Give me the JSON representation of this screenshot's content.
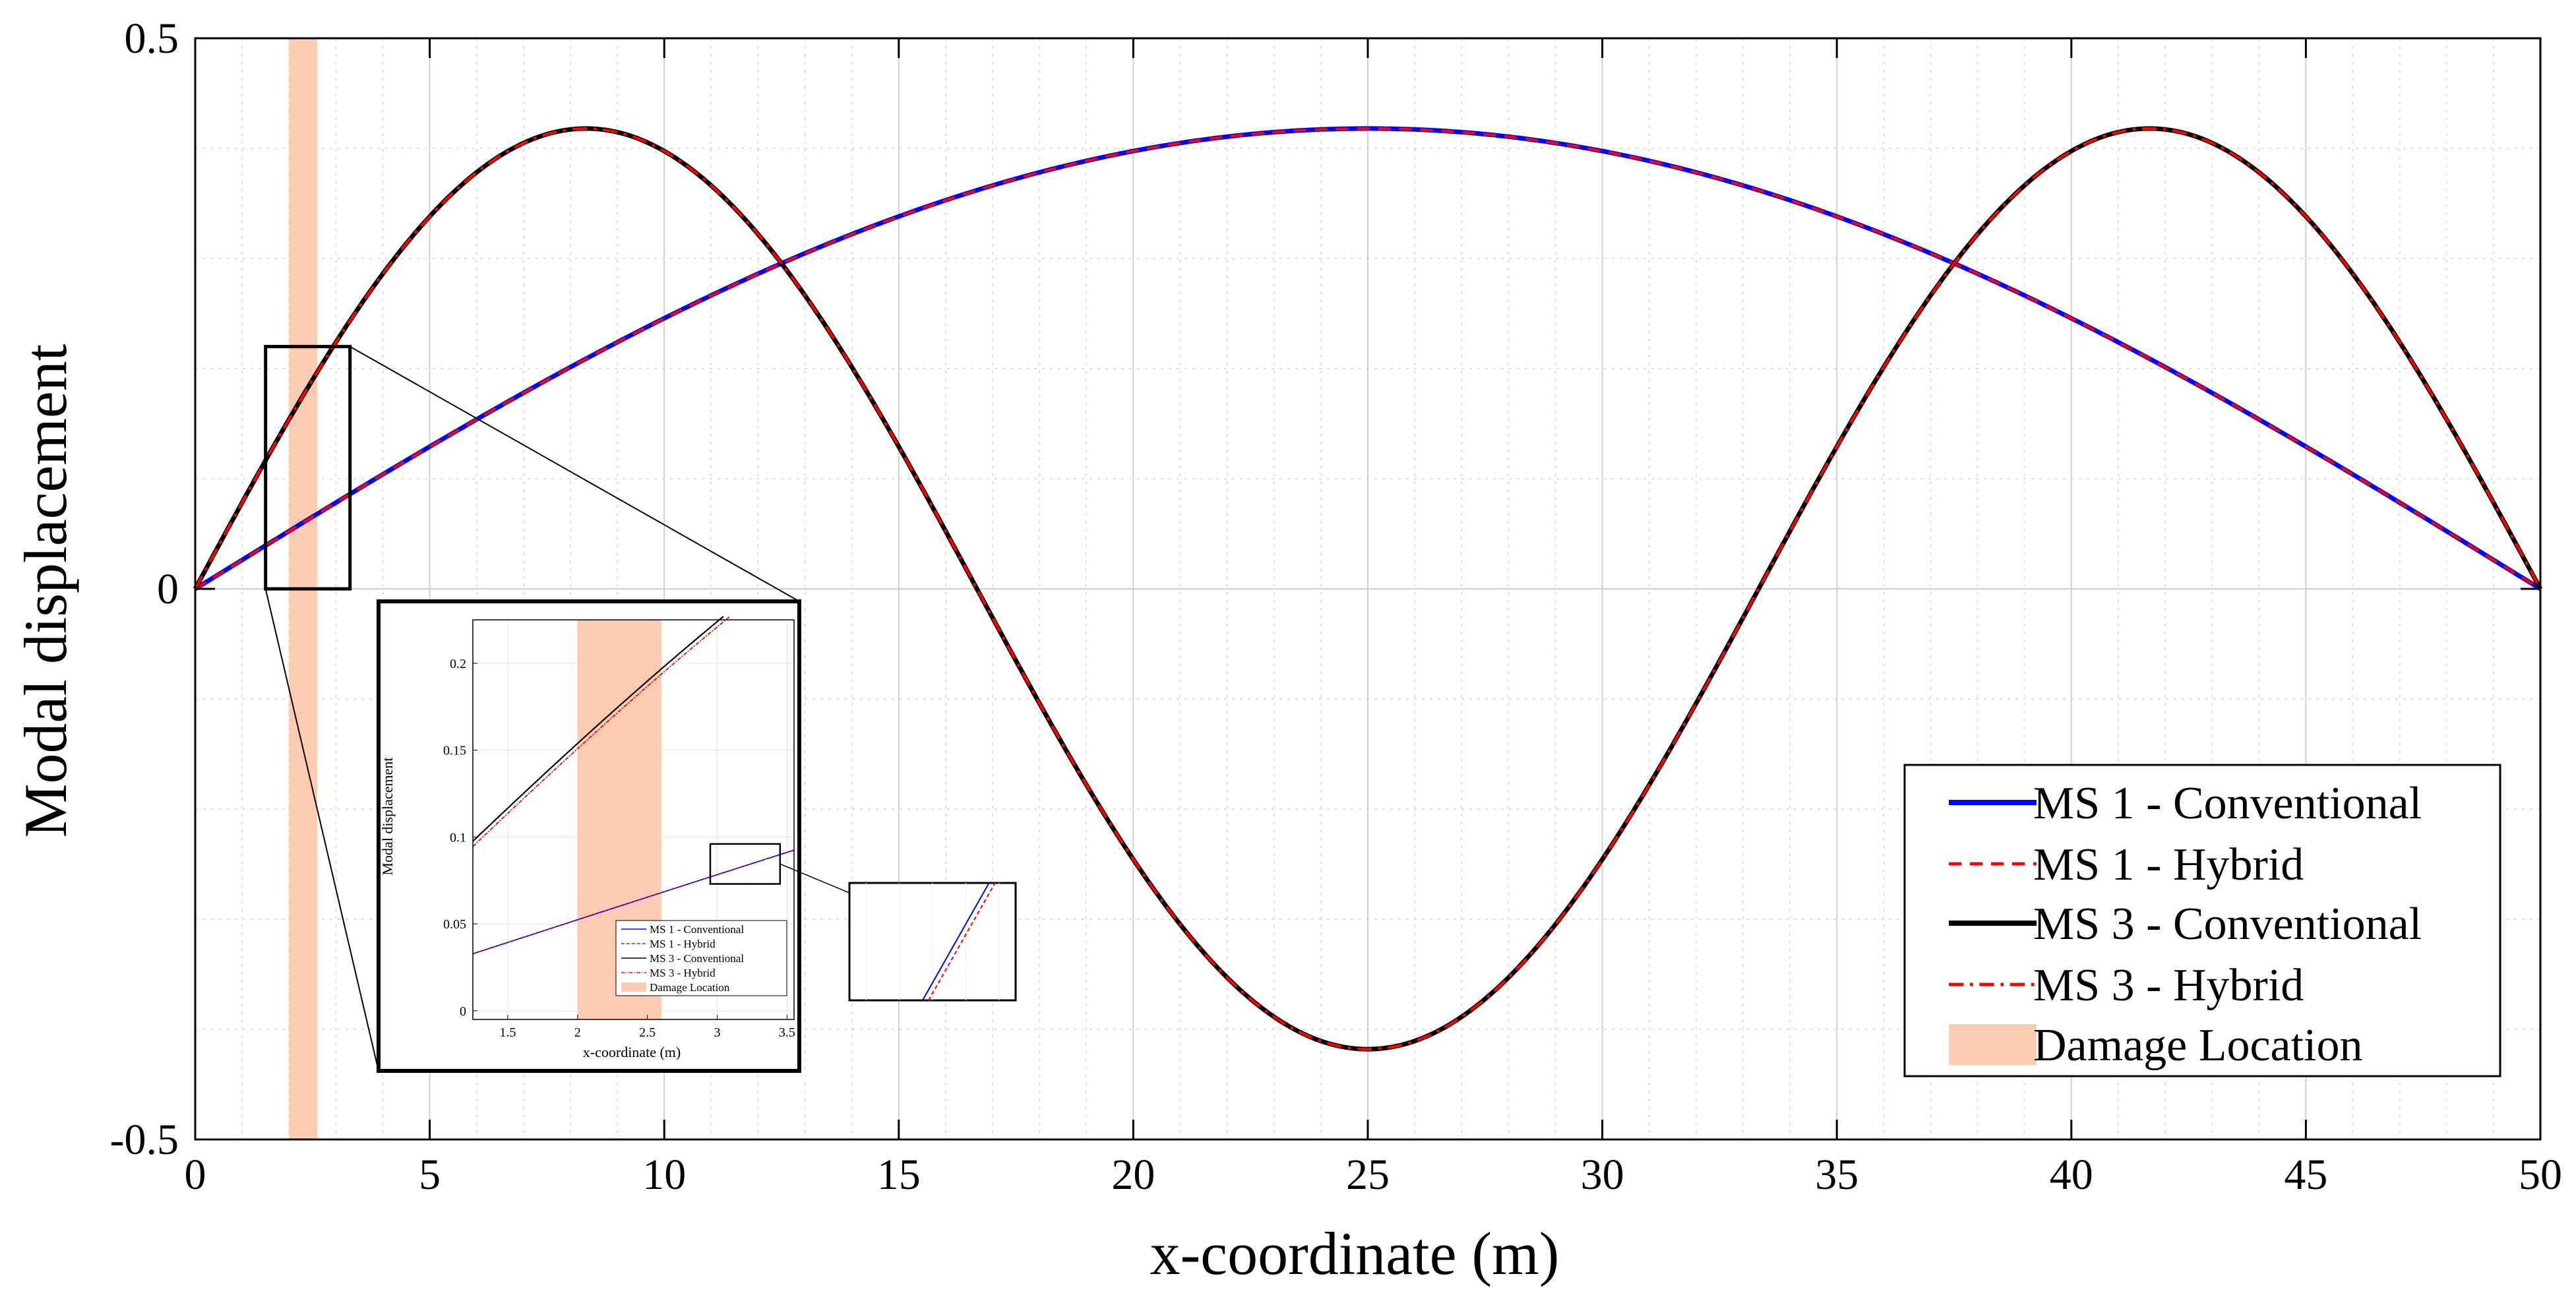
{
  "chart_data": [
    {
      "type": "line",
      "title": "",
      "xlabel": "x-coordinate (m)",
      "ylabel": "Modal displacement",
      "xlim": [
        0,
        50
      ],
      "ylim": [
        -0.5,
        0.5
      ],
      "xticks": [
        0,
        5,
        10,
        15,
        20,
        25,
        30,
        35,
        40,
        45,
        50
      ],
      "xtick_labels": [
        "0",
        "5",
        "10",
        "15",
        "20",
        "25",
        "30",
        "35",
        "40",
        "45",
        "50"
      ],
      "yticks": [
        -0.5,
        0,
        0.5
      ],
      "ytick_labels": [
        "-0.5",
        "0",
        "0.5"
      ],
      "grid": true,
      "legend_position": "bottom-right",
      "damage_location": {
        "x_range": [
          2.0,
          2.6
        ],
        "color": "#fdcbb1",
        "label": "Damage Location"
      },
      "zoom_box": {
        "x_range": [
          1.5,
          3.3
        ],
        "y_range": [
          0,
          0.22
        ]
      },
      "series": [
        {
          "name": "MS 1 - Conventional",
          "color": "#0000ff",
          "dash": "solid",
          "width": "thick",
          "mode_number": 1,
          "amplitude": 0.418
        },
        {
          "name": "MS 1 - Hybrid",
          "color": "#ff0000",
          "dash": "dashed",
          "width": "thin",
          "mode_number": 1,
          "amplitude": 0.418
        },
        {
          "name": "MS 3 - Conventional",
          "color": "#000000",
          "dash": "solid",
          "width": "thick",
          "mode_number": 3,
          "amplitude": 0.418
        },
        {
          "name": "MS 3 - Hybrid",
          "color": "#ff0000",
          "dash": "dashdot",
          "width": "thin",
          "mode_number": 3,
          "amplitude": 0.418
        }
      ]
    },
    {
      "type": "line",
      "title": "",
      "xlabel": "x-coordinate (m)",
      "ylabel": "Modal displacement",
      "xlim": [
        1.25,
        3.55
      ],
      "ylim": [
        -0.005,
        0.225
      ],
      "xticks": [
        1.5,
        2,
        2.5,
        3,
        3.5
      ],
      "xtick_labels": [
        "1.5",
        "2",
        "2.5",
        "3",
        "3.5"
      ],
      "yticks": [
        0,
        0.05,
        0.1,
        0.15,
        0.2
      ],
      "ytick_labels": [
        "0",
        "0.05",
        "0.1",
        "0.15",
        "0.2"
      ],
      "grid": true,
      "legend_position": "bottom-right",
      "damage_location": {
        "x_range": [
          2.0,
          2.6
        ],
        "color": "#fdcbb1",
        "label": "Damage Location"
      },
      "zoom_box": {
        "x_range": [
          2.95,
          3.45
        ],
        "y_range": [
          0.073,
          0.096
        ]
      },
      "series": [
        {
          "name": "MS 1 - Conventional",
          "color": "#0000ff",
          "dash": "solid"
        },
        {
          "name": "MS 1 - Hybrid",
          "color": "#ff0000",
          "dash": "dashed"
        },
        {
          "name": "MS 3 - Conventional",
          "color": "#000000",
          "dash": "solid"
        },
        {
          "name": "MS 3 - Hybrid",
          "color": "#ff0000",
          "dash": "dashdot"
        }
      ]
    },
    {
      "type": "line",
      "title": "",
      "xlim": [
        2.95,
        3.45
      ],
      "ylim": [
        0.073,
        0.096
      ],
      "series": [
        {
          "name": "MS 1 - Conventional",
          "color": "#0000ff",
          "dash": "solid"
        },
        {
          "name": "MS 1 - Hybrid",
          "color": "#ff0000",
          "dash": "dashed"
        }
      ]
    }
  ]
}
